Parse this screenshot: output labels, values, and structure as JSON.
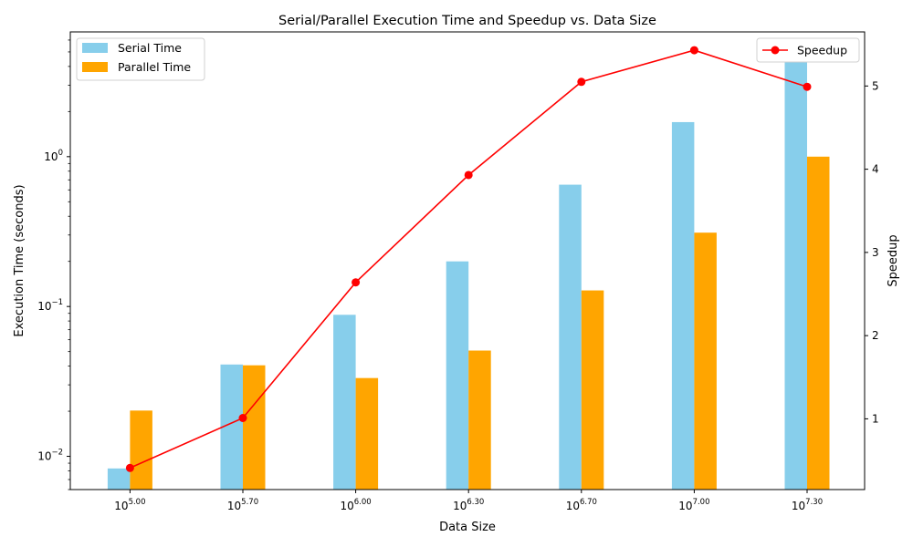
{
  "chart_data": {
    "type": "bar",
    "title": "Serial/Parallel Execution Time and Speedup vs. Data Size",
    "xlabel": "Data Size",
    "ylabel": "Execution Time (seconds)",
    "y2label": "Speedup",
    "categories": [
      {
        "base": "10",
        "exp": "5.00"
      },
      {
        "base": "10",
        "exp": "5.70"
      },
      {
        "base": "10",
        "exp": "6.00"
      },
      {
        "base": "10",
        "exp": "6.30"
      },
      {
        "base": "10",
        "exp": "6.70"
      },
      {
        "base": "10",
        "exp": "7.00"
      },
      {
        "base": "10",
        "exp": "7.30"
      }
    ],
    "yscale": "log",
    "ylim": [
      0.006,
      6.8
    ],
    "y_ticks": [
      {
        "value": 0.01,
        "base": "10",
        "exp": "−2"
      },
      {
        "value": 0.1,
        "base": "10",
        "exp": "−1"
      },
      {
        "value": 1,
        "base": "10",
        "exp": "0"
      }
    ],
    "y2lim": [
      0.15,
      5.65
    ],
    "y2_ticks": [
      "1",
      "2",
      "3",
      "4",
      "5"
    ],
    "series": [
      {
        "name": "Serial Time",
        "kind": "bar",
        "color": "#87CEEB",
        "values": [
          0.0083,
          0.041,
          0.088,
          0.2,
          0.65,
          1.7,
          5.0
        ]
      },
      {
        "name": "Parallel Time",
        "kind": "bar",
        "color": "#FFA500",
        "values": [
          0.0202,
          0.0405,
          0.0333,
          0.0508,
          0.128,
          0.311,
          1.0
        ]
      },
      {
        "name": "Speedup",
        "kind": "line",
        "axis": "right",
        "color": "#FF0000",
        "values": [
          0.41,
          1.01,
          2.64,
          3.93,
          5.05,
          5.43,
          4.99
        ]
      }
    ],
    "legend_left": "upper-left",
    "legend_right": "upper-right",
    "grid": false
  }
}
